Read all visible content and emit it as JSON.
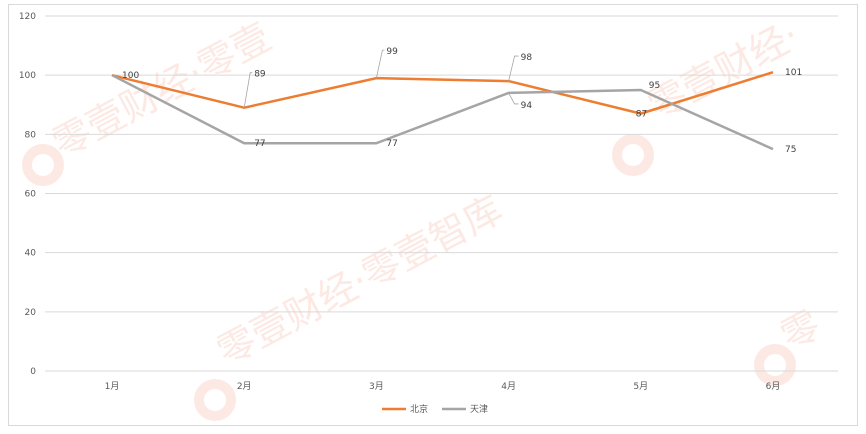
{
  "watermark": {
    "text": "零壹财经·零壹智库",
    "color": "#f07850"
  },
  "colors": {
    "beijing": "#ed7d31",
    "tianjin": "#a5a5a5",
    "grid": "#d9d9d9",
    "axis_text": "#595959",
    "label_text": "#404040"
  },
  "chart_data": {
    "type": "line",
    "title": "",
    "xlabel": "",
    "ylabel": "",
    "categories": [
      "1月",
      "2月",
      "3月",
      "4月",
      "5月",
      "6月"
    ],
    "ylim": [
      0,
      120
    ],
    "yticks": [
      0,
      20,
      40,
      60,
      80,
      100,
      120
    ],
    "grid": true,
    "legend_position": "bottom",
    "series": [
      {
        "name": "北京",
        "color": "#ed7d31",
        "values": [
          100,
          89,
          99,
          98,
          87,
          101
        ],
        "labels": [
          "100",
          "89",
          "99",
          "98",
          "87",
          "101"
        ]
      },
      {
        "name": "天津",
        "color": "#a5a5a5",
        "values": [
          100,
          77,
          77,
          94,
          95,
          75
        ],
        "labels": [
          "",
          "77",
          "77",
          "94",
          "95",
          "75"
        ]
      }
    ]
  }
}
